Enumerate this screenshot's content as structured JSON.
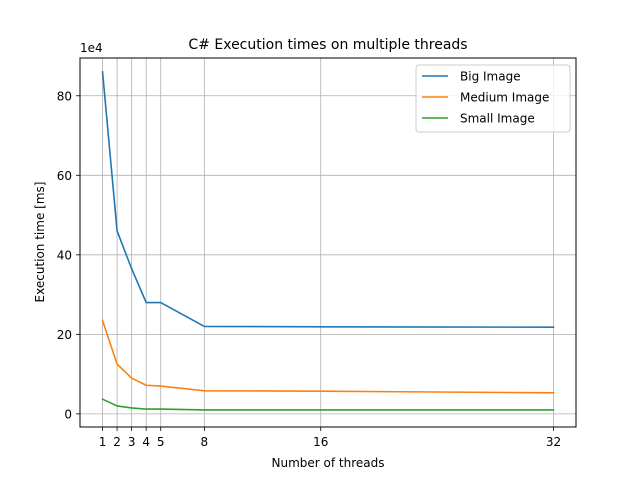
{
  "chart_data": {
    "type": "line",
    "title": "C# Execution times on multiple threads",
    "xlabel": "Number of threads",
    "ylabel": "Execution time [ms]",
    "y_offset_label": "1e4",
    "x": [
      1,
      2,
      3,
      4,
      5,
      8,
      16,
      32
    ],
    "xticks": [
      1,
      2,
      3,
      4,
      5,
      8,
      16,
      32
    ],
    "xlim": [
      -0.55,
      33.55
    ],
    "yticks": [
      0,
      20,
      40,
      60,
      80
    ],
    "ylim": [
      -3.3,
      89.5
    ],
    "grid": true,
    "legend_position": "top-right",
    "series": [
      {
        "name": "Big Image",
        "color": "#1f77b4",
        "values": [
          86,
          46,
          36.5,
          28,
          28,
          22,
          21.9,
          21.8
        ]
      },
      {
        "name": "Medium Image",
        "color": "#ff7f0e",
        "values": [
          23.5,
          12.5,
          9,
          7.2,
          7,
          5.8,
          5.7,
          5.3
        ]
      },
      {
        "name": "Small Image",
        "color": "#2ca02c",
        "values": [
          3.7,
          2,
          1.5,
          1.2,
          1.2,
          1,
          1,
          1
        ]
      }
    ]
  }
}
